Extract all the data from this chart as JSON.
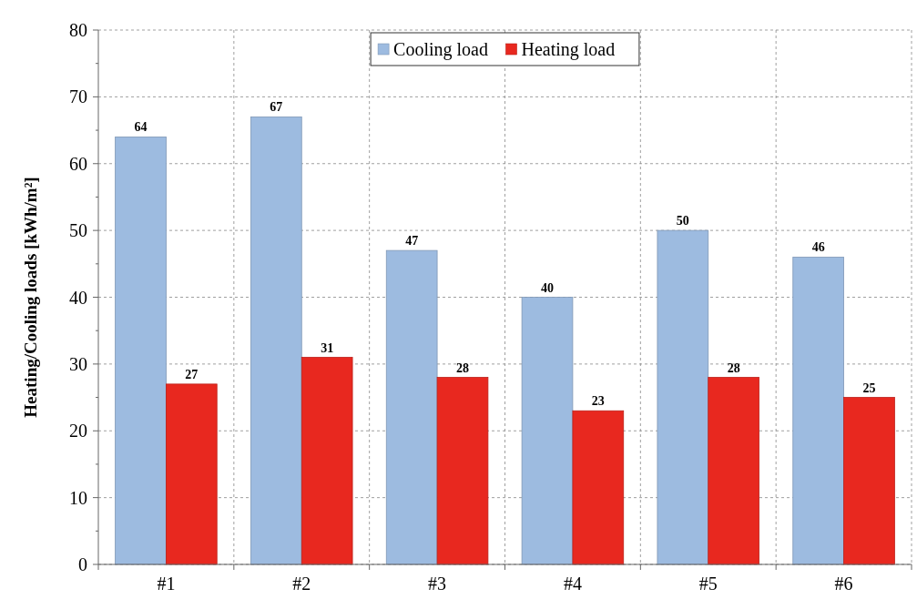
{
  "chart_data": {
    "type": "bar",
    "ylabel": "Heating/Cooling loads [kWh/m²]",
    "categories": [
      "#1",
      "#2",
      "#3",
      "#4",
      "#5",
      "#6"
    ],
    "series": [
      {
        "name": "Cooling load",
        "color": "#9dbbe0",
        "values": [
          64,
          67,
          47,
          40,
          50,
          46
        ]
      },
      {
        "name": "Heating load",
        "color": "#e8281f",
        "values": [
          27,
          31,
          28,
          23,
          28,
          25
        ]
      }
    ],
    "ylim": [
      0,
      80
    ],
    "yticks": [
      0,
      10,
      20,
      30,
      40,
      50,
      60,
      70,
      80
    ],
    "grid": true,
    "legend": "top",
    "data_labels": true
  }
}
